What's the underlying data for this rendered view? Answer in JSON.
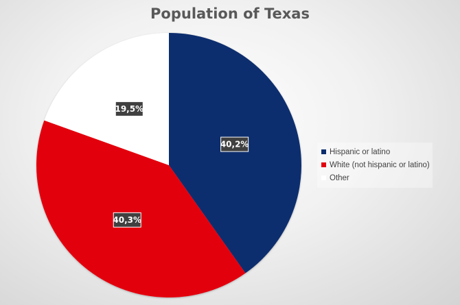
{
  "chart_data": {
    "type": "pie",
    "title": "Population of Texas",
    "categories": [
      "Hispanic or latino",
      "White (not hispanic or latino)",
      "Other"
    ],
    "values": [
      40.2,
      40.3,
      19.5
    ],
    "labels": [
      "40,2%",
      "40,3%",
      "19,5%"
    ],
    "colors": [
      "#0d2f6e",
      "#e3000f",
      "#ffffff"
    ],
    "start_angle_deg": 0,
    "direction": "clockwise",
    "legend_position": "right"
  }
}
